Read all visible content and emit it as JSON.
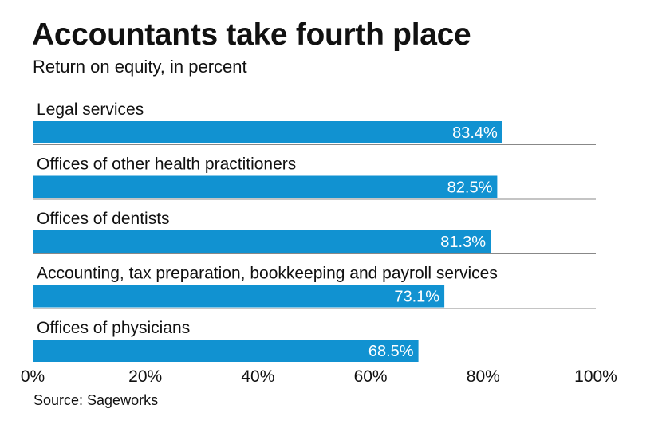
{
  "title": "Accountants take fourth place",
  "subtitle": "Return on equity, in percent",
  "source": "Source: Sageworks",
  "chart_data": {
    "type": "bar",
    "orientation": "horizontal",
    "title": "Accountants take fourth place",
    "subtitle": "Return on equity, in percent",
    "categories": [
      "Legal services",
      "Offices of other health practitioners",
      "Offices of dentists",
      "Accounting, tax preparation, bookkeeping and payroll services",
      "Offices of physicians"
    ],
    "values": [
      83.4,
      82.5,
      81.3,
      73.1,
      68.5
    ],
    "data_labels": [
      "83.4%",
      "82.5%",
      "81.3%",
      "73.1%",
      "68.5%"
    ],
    "xlim": [
      0,
      100
    ],
    "x_ticks": [
      "0%",
      "20%",
      "40%",
      "60%",
      "80%",
      "100%"
    ],
    "bar_color": "#1192d1",
    "label_color": "#ffffff",
    "grid": false
  }
}
